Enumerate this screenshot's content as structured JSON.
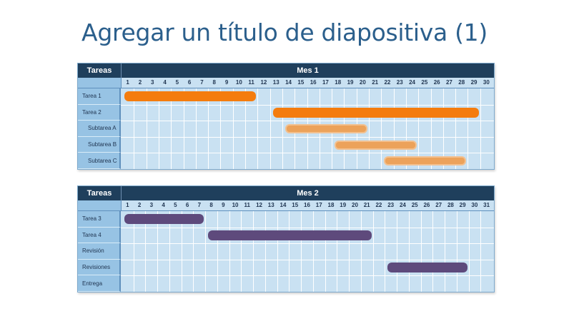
{
  "slide": {
    "title": "Agregar un título de diapositiva (1)"
  },
  "colors": {
    "title": "#2b5f8c",
    "header_bg": "#1f3f5c",
    "grid_bg": "#c9e1f2",
    "label_bg": "#97c3e4",
    "orange": "#f47c0e",
    "orange_light": "#eca25a",
    "purple": "#5e4a7c"
  },
  "chart_data": [
    {
      "type": "gantt",
      "task_header": "Tareas",
      "period_label": "Mes 1",
      "days": [
        "1",
        "2",
        "3",
        "4",
        "5",
        "6",
        "7",
        "8",
        "9",
        "10",
        "11",
        "12",
        "13",
        "14",
        "15",
        "16",
        "17",
        "18",
        "19",
        "20",
        "21",
        "22",
        "23",
        "24",
        "25",
        "26",
        "27",
        "28",
        "29",
        "30"
      ],
      "tasks": [
        {
          "name": "Tarea 1",
          "indent": false,
          "start": 1,
          "end": 11,
          "color": "orange"
        },
        {
          "name": "Tarea 2",
          "indent": false,
          "start": 13,
          "end": 29,
          "color": "orange"
        },
        {
          "name": "Subtarea A",
          "indent": true,
          "start": 14,
          "end": 20,
          "color": "orange-light"
        },
        {
          "name": "Subtarea B",
          "indent": true,
          "start": 18,
          "end": 24,
          "color": "orange-light"
        },
        {
          "name": "Subtarea C",
          "indent": true,
          "start": 22,
          "end": 28,
          "color": "orange-light"
        }
      ]
    },
    {
      "type": "gantt",
      "task_header": "Tareas",
      "period_label": "Mes 2",
      "days": [
        "1",
        "2",
        "3",
        "4",
        "5",
        "6",
        "7",
        "8",
        "9",
        "10",
        "11",
        "12",
        "13",
        "14",
        "15",
        "16",
        "17",
        "18",
        "19",
        "20",
        "21",
        "22",
        "23",
        "24",
        "25",
        "26",
        "27",
        "28",
        "29",
        "30",
        "31"
      ],
      "tasks": [
        {
          "name": "Tarea 3",
          "indent": false,
          "start": 1,
          "end": 7,
          "color": "purple"
        },
        {
          "name": "Tarea 4",
          "indent": false,
          "start": 8,
          "end": 21,
          "color": "purple"
        },
        {
          "name": "Revisión",
          "indent": false,
          "start": null,
          "end": null,
          "color": "purple"
        },
        {
          "name": "Revisiones",
          "indent": false,
          "start": 23,
          "end": 29,
          "color": "purple"
        },
        {
          "name": "Entrega",
          "indent": false,
          "start": null,
          "end": null,
          "color": "purple"
        }
      ]
    }
  ]
}
